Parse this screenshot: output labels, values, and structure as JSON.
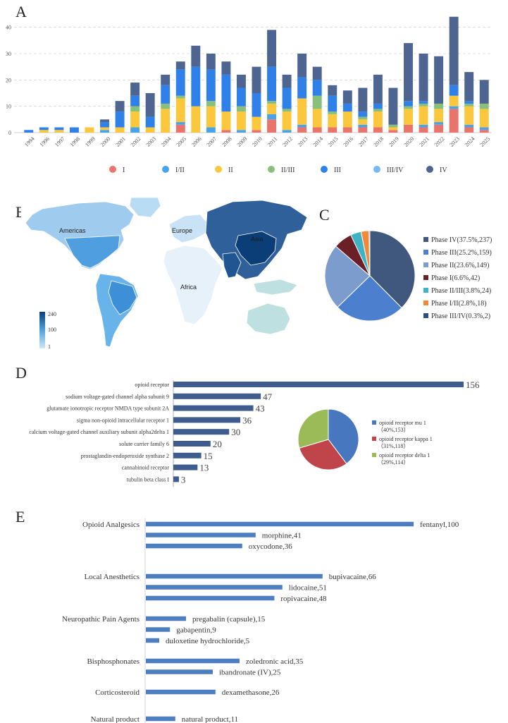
{
  "panels": {
    "A": "A",
    "B": "B",
    "C": "C",
    "D": "D",
    "E": "E"
  },
  "chart_data": [
    {
      "id": "A",
      "type": "bar",
      "stacked": true,
      "categories": [
        "1994",
        "1996",
        "1997",
        "1998",
        "1999",
        "2000",
        "2001",
        "2002",
        "2003",
        "2004",
        "2005",
        "2006",
        "2007",
        "2008",
        "2009",
        "2010",
        "2011",
        "2012",
        "2013",
        "2014",
        "2015",
        "2016",
        "2017",
        "2018",
        "2019",
        "2020",
        "2021",
        "2022",
        "2023",
        "2024",
        "2025"
      ],
      "ylim": [
        0,
        45
      ],
      "yticks": [
        0,
        10,
        20,
        30,
        40
      ],
      "grid": "horizontal-dashed",
      "legend_position": "bottom",
      "series": [
        {
          "name": "I",
          "color": "#e8746c",
          "values": [
            0,
            0,
            0,
            0,
            0,
            0,
            0,
            0,
            0,
            0,
            3,
            0,
            0,
            1,
            0,
            1,
            5,
            0,
            2,
            2,
            2,
            2,
            2,
            2,
            1,
            3,
            2,
            3,
            9,
            2,
            1
          ]
        },
        {
          "name": "I/II",
          "color": "#4aa3e8",
          "values": [
            0,
            0,
            0,
            0,
            0,
            1,
            0,
            2,
            0,
            0,
            1,
            0,
            2,
            0,
            1,
            0,
            2,
            1,
            1,
            0,
            0,
            0,
            1,
            0,
            0,
            0,
            1,
            1,
            1,
            1,
            1
          ]
        },
        {
          "name": "II",
          "color": "#fbc73c",
          "values": [
            0,
            1,
            1,
            0,
            2,
            1,
            2,
            6,
            2,
            9,
            9,
            10,
            8,
            7,
            7,
            5,
            4,
            7,
            10,
            7,
            5,
            6,
            2,
            6,
            1,
            6,
            7,
            5,
            4,
            7,
            7
          ]
        },
        {
          "name": "II/III",
          "color": "#88c07a",
          "values": [
            0,
            0,
            0,
            0,
            0,
            0,
            0,
            2,
            0,
            2,
            1,
            0,
            2,
            0,
            2,
            0,
            1,
            1,
            0,
            5,
            1,
            0,
            1,
            1,
            1,
            1,
            1,
            2,
            0,
            1,
            2
          ]
        },
        {
          "name": "III",
          "color": "#2f80e8",
          "values": [
            1,
            1,
            1,
            2,
            0,
            2,
            6,
            4,
            4,
            7,
            10,
            15,
            12,
            14,
            7,
            9,
            13,
            8,
            8,
            6,
            6,
            3,
            2,
            2,
            0,
            2,
            1,
            0,
            4,
            1,
            0
          ]
        },
        {
          "name": "III/IV",
          "color": "#79b8f0",
          "values": [
            0,
            0,
            0,
            0,
            0,
            0,
            0,
            0,
            0,
            0,
            0,
            0,
            0,
            0,
            0,
            0,
            0,
            0,
            0,
            0,
            0,
            0,
            0,
            0,
            0,
            0,
            0,
            0,
            0,
            0,
            0
          ]
        },
        {
          "name": "IV",
          "color": "#4d6590",
          "values": [
            0,
            0,
            0,
            0,
            0,
            1,
            4,
            5,
            9,
            4,
            3,
            8,
            6,
            5,
            5,
            10,
            14,
            5,
            9,
            5,
            4,
            5,
            9,
            11,
            14,
            22,
            18,
            18,
            26,
            11,
            9
          ]
        }
      ],
      "legend_labels": [
        "I",
        "I/II",
        "II",
        "II/III",
        "III",
        "III/IV",
        "IV"
      ]
    },
    {
      "id": "B",
      "type": "heatmap",
      "kind": "world-map",
      "region_labels": [
        "Americas",
        "Europe",
        "Asia",
        "Africa"
      ],
      "colorbar": {
        "max": "240",
        "mid": "100",
        "min": "1"
      }
    },
    {
      "id": "C",
      "type": "pie",
      "slices": [
        {
          "label": "Phase IV(37.5%,237)",
          "value": 237,
          "color": "#41587e"
        },
        {
          "label": "Phase III(25.2%,159)",
          "value": 159,
          "color": "#4d7fcf"
        },
        {
          "label": "Phase II(23.6%,149)",
          "value": 149,
          "color": "#7b9ccd"
        },
        {
          "label": "Phase I(6.6%,42)",
          "value": 42,
          "color": "#6b1f27"
        },
        {
          "label": "Phase II/III(3.8%,24)",
          "value": 24,
          "color": "#3fb3c6"
        },
        {
          "label": "Phase I/II(2.8%,18)",
          "value": 18,
          "color": "#f08a3a"
        },
        {
          "label": "Phase III/IV(0.3%,2)",
          "value": 2,
          "color": "#2e4f86"
        }
      ],
      "legend_position": "right"
    },
    {
      "id": "D",
      "type": "bar",
      "orientation": "horizontal",
      "bar_color": "#3e5c8e",
      "categories": [
        "opioid receptor",
        "sodium voltage-gated channel alpha subunit 9",
        "glutamate ionotropic receptor NMDA type subunit 2A",
        "sigma non-opioid intracellular receptor 1",
        "calcium voltage-gated channel auxiliary subunit alpha2delta 1",
        "solute carrier family 6",
        "prostaglandin-endoperoxide synthase 2",
        "cannabinoid receptor",
        "tubulin beta class I"
      ],
      "values": [
        156,
        47,
        43,
        36,
        30,
        20,
        15,
        13,
        3
      ],
      "value_labels": [
        "156",
        "47",
        "43",
        "36",
        "30",
        "20",
        "15",
        "13",
        "3"
      ],
      "inset_pie": {
        "slices": [
          {
            "label": "opioid receptor mu 1",
            "detail": "（40%,153）",
            "value": 153,
            "color": "#4677bf"
          },
          {
            "label": "opioid receptor kappa 1",
            "detail": "（31%,118）",
            "value": 118,
            "color": "#c0454a"
          },
          {
            "label": "opioid receptor delta 1",
            "detail": "（29%,114）",
            "value": 114,
            "color": "#9bbb59"
          }
        ]
      }
    },
    {
      "id": "E",
      "type": "bar",
      "orientation": "horizontal",
      "bar_color": "#4d7fc0",
      "groups": [
        {
          "name": "Opioid Analgesics",
          "items": [
            {
              "label": "fentanyl,100",
              "value": 100
            },
            {
              "label": "morphine,41",
              "value": 41
            },
            {
              "label": "oxycodone,36",
              "value": 36
            }
          ]
        },
        {
          "name": "Local Anesthetics",
          "items": [
            {
              "label": "bupivacaine,66",
              "value": 66
            },
            {
              "label": "lidocaine,51",
              "value": 51
            },
            {
              "label": "ropivacaine,48",
              "value": 48
            }
          ]
        },
        {
          "name": "Neuropathic Pain Agents",
          "items": [
            {
              "label": "pregabalin (capsule),15",
              "value": 15
            },
            {
              "label": "gabapentin,9",
              "value": 9
            },
            {
              "label": "duloxetine hydrochloride,5",
              "value": 5
            }
          ]
        },
        {
          "name": "Bisphosphonates",
          "items": [
            {
              "label": "zoledronic acid,35",
              "value": 35
            },
            {
              "label": "ibandronate (IV),25",
              "value": 25
            }
          ]
        },
        {
          "name": "Corticosteroid",
          "items": [
            {
              "label": "dexamethasone,26",
              "value": 26
            }
          ]
        },
        {
          "name": "Natural product",
          "items": [
            {
              "label": "natural product,11",
              "value": 11
            }
          ]
        }
      ]
    }
  ]
}
